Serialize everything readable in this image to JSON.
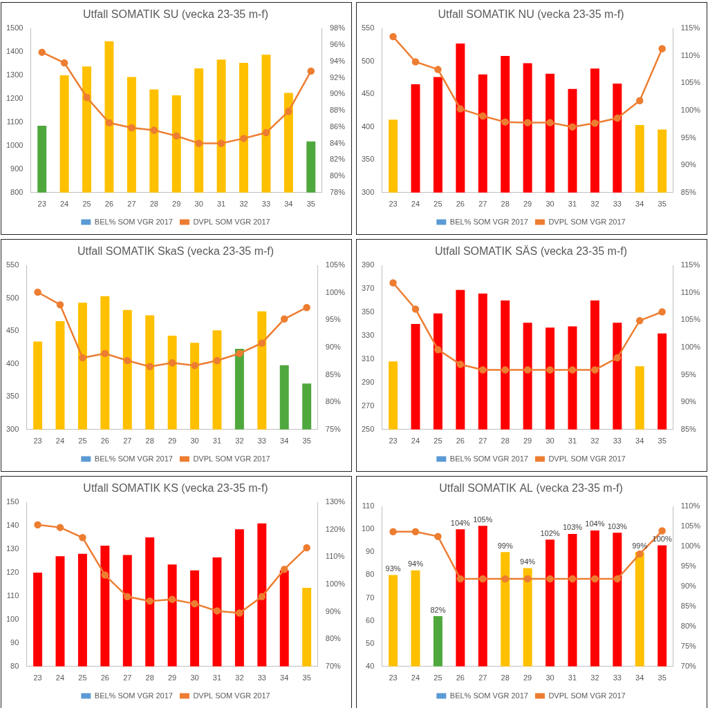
{
  "chart_data": [
    {
      "type": "bar",
      "title": "Utfall SOMATIK SU (vecka 23-35 m-f)",
      "categories": [
        "23",
        "24",
        "25",
        "26",
        "27",
        "28",
        "29",
        "30",
        "31",
        "32",
        "33",
        "34",
        "35"
      ],
      "series": [
        {
          "name": "BEL% SOM VGR 2017",
          "type": "bar",
          "color": "#5b9bd5",
          "colors": [
            "#4fa83d",
            "#ffc000",
            "#ffc000",
            "#ffc000",
            "#ffc000",
            "#ffc000",
            "#ffc000",
            "#ffc000",
            "#ffc000",
            "#ffc000",
            "#ffc000",
            "#ffc000",
            "#4fa83d"
          ],
          "values": [
            1085,
            1300,
            1338,
            1445,
            1293,
            1240,
            1215,
            1330,
            1367,
            1353,
            1388,
            1225,
            1018
          ]
        },
        {
          "name": "DVPL SOM VGR 2017",
          "type": "line",
          "color": "#ed7d31",
          "marker": "circle",
          "axis": "y2",
          "values": [
            95.1,
            93.8,
            89.6,
            86.5,
            85.9,
            85.6,
            84.9,
            84.0,
            84.0,
            84.6,
            85.3,
            87.9,
            92.8
          ]
        }
      ],
      "ylim": [
        800,
        1500
      ],
      "yticks": [
        800,
        900,
        1000,
        1100,
        1200,
        1300,
        1400,
        1500
      ],
      "y2lim": [
        78,
        98
      ],
      "y2ticks": [
        {
          "value": 78,
          "label": "78%"
        },
        {
          "value": 80,
          "label": "80%"
        },
        {
          "value": 82,
          "label": "82%"
        },
        {
          "value": 84,
          "label": "84%"
        },
        {
          "value": 86,
          "label": "86%"
        },
        {
          "value": 88,
          "label": "88%"
        },
        {
          "value": 90,
          "label": "90%"
        },
        {
          "value": 92,
          "label": "92%"
        },
        {
          "value": 94,
          "label": "94%"
        },
        {
          "value": 96,
          "label": "96%"
        },
        {
          "value": 98,
          "label": "98%"
        }
      ],
      "grid": false,
      "legend": "bottom"
    },
    {
      "type": "bar",
      "title": "Utfall SOMATIK NU (vecka 23-35 m-f)",
      "categories": [
        "23",
        "24",
        "25",
        "26",
        "27",
        "28",
        "29",
        "30",
        "31",
        "32",
        "33",
        "34",
        "35"
      ],
      "series": [
        {
          "name": "BEL% SOM VGR 2017",
          "type": "bar",
          "color": "#5b9bd5",
          "colors": [
            "#ffc000",
            "#ff0000",
            "#ff0000",
            "#ff0000",
            "#ff0000",
            "#ff0000",
            "#ff0000",
            "#ff0000",
            "#ff0000",
            "#ff0000",
            "#ff0000",
            "#ffc000",
            "#ffc000"
          ],
          "values": [
            411,
            465,
            476,
            527,
            480,
            508,
            497,
            481,
            458,
            489,
            466,
            403,
            396
          ]
        },
        {
          "name": "DVPL SOM VGR 2017",
          "type": "line",
          "color": "#ed7d31",
          "marker": "circle",
          "axis": "y2",
          "values": [
            113.5,
            108.9,
            107.5,
            100.3,
            99.0,
            97.9,
            97.8,
            97.8,
            97.0,
            97.7,
            98.6,
            101.8,
            111.3
          ]
        }
      ],
      "ylim": [
        300,
        550
      ],
      "yticks": [
        300,
        350,
        400,
        450,
        500,
        550
      ],
      "y2lim": [
        85,
        115
      ],
      "y2ticks": [
        {
          "value": 85,
          "label": "85%"
        },
        {
          "value": 90,
          "label": "90%"
        },
        {
          "value": 95,
          "label": "95%"
        },
        {
          "value": 100,
          "label": "100%"
        },
        {
          "value": 105,
          "label": "105%"
        },
        {
          "value": 110,
          "label": "110%"
        },
        {
          "value": 115,
          "label": "115%"
        }
      ],
      "grid": false,
      "legend": "bottom"
    },
    {
      "type": "bar",
      "title": "Utfall SOMATIK SkaS (vecka 23-35 m-f)",
      "categories": [
        "23",
        "24",
        "25",
        "26",
        "27",
        "28",
        "29",
        "30",
        "31",
        "32",
        "33",
        "34",
        "35"
      ],
      "series": [
        {
          "name": "BEL% SOM VGR 2017",
          "type": "bar",
          "color": "#5b9bd5",
          "colors": [
            "#ffc000",
            "#ffc000",
            "#ffc000",
            "#ffc000",
            "#ffc000",
            "#ffc000",
            "#ffc000",
            "#ffc000",
            "#ffc000",
            "#4fa83d",
            "#ffc000",
            "#4fa83d",
            "#4fa83d"
          ],
          "values": [
            434,
            465,
            493,
            503,
            482,
            474,
            443,
            432,
            451,
            423,
            480,
            398,
            370
          ]
        },
        {
          "name": "DVPL SOM VGR 2017",
          "type": "line",
          "color": "#ed7d31",
          "marker": "circle",
          "axis": "y2",
          "values": [
            100.1,
            97.8,
            88.1,
            88.9,
            87.6,
            86.5,
            87.2,
            86.7,
            87.6,
            88.9,
            90.8,
            95.2,
            97.3
          ]
        }
      ],
      "ylim": [
        300,
        550
      ],
      "yticks": [
        300,
        350,
        400,
        450,
        500,
        550
      ],
      "y2lim": [
        75,
        105
      ],
      "y2ticks": [
        {
          "value": 75,
          "label": "75%"
        },
        {
          "value": 80,
          "label": "80%"
        },
        {
          "value": 85,
          "label": "85%"
        },
        {
          "value": 90,
          "label": "90%"
        },
        {
          "value": 95,
          "label": "95%"
        },
        {
          "value": 100,
          "label": "100%"
        },
        {
          "value": 105,
          "label": "105%"
        }
      ],
      "grid": false,
      "legend": "bottom"
    },
    {
      "type": "bar",
      "title": "Utfall SOMATIK SÄS (vecka 23-35 m-f)",
      "categories": [
        "23",
        "24",
        "25",
        "26",
        "27",
        "28",
        "29",
        "30",
        "31",
        "32",
        "33",
        "34",
        "35"
      ],
      "series": [
        {
          "name": "BEL% SOM VGR 2017",
          "type": "bar",
          "color": "#5b9bd5",
          "colors": [
            "#ffc000",
            "#ff0000",
            "#ff0000",
            "#ff0000",
            "#ff0000",
            "#ff0000",
            "#ff0000",
            "#ff0000",
            "#ff0000",
            "#ff0000",
            "#ff0000",
            "#ffc000",
            "#ff0000"
          ],
          "values": [
            308,
            340,
            349,
            369,
            366,
            360,
            341,
            337,
            338,
            360,
            341,
            304,
            332
          ]
        },
        {
          "name": "DVPL SOM VGR 2017",
          "type": "line",
          "color": "#ed7d31",
          "marker": "circle",
          "axis": "y2",
          "values": [
            111.8,
            107.0,
            99.6,
            96.9,
            95.9,
            95.9,
            95.9,
            95.9,
            95.9,
            95.9,
            98.1,
            104.9,
            106.5
          ]
        }
      ],
      "ylim": [
        250,
        390
      ],
      "yticks": [
        250,
        270,
        290,
        310,
        330,
        350,
        370,
        390
      ],
      "y2lim": [
        85,
        115
      ],
      "y2ticks": [
        {
          "value": 85,
          "label": "85%"
        },
        {
          "value": 90,
          "label": "90%"
        },
        {
          "value": 95,
          "label": "95%"
        },
        {
          "value": 100,
          "label": "100%"
        },
        {
          "value": 105,
          "label": "105%"
        },
        {
          "value": 110,
          "label": "110%"
        },
        {
          "value": 115,
          "label": "115%"
        }
      ],
      "grid": false,
      "legend": "bottom"
    },
    {
      "type": "bar",
      "title": "Utfall SOMATIK KS (vecka 23-35 m-f)",
      "categories": [
        "23",
        "24",
        "25",
        "26",
        "27",
        "28",
        "29",
        "30",
        "31",
        "32",
        "33",
        "34",
        "35"
      ],
      "series": [
        {
          "name": "BEL% SOM VGR 2017",
          "type": "bar",
          "color": "#5b9bd5",
          "colors": [
            "#ff0000",
            "#ff0000",
            "#ff0000",
            "#ff0000",
            "#ff0000",
            "#ff0000",
            "#ff0000",
            "#ff0000",
            "#ff0000",
            "#ff0000",
            "#ff0000",
            "#ff0000",
            "#ffc000"
          ],
          "values": [
            120,
            127,
            128,
            131.5,
            127.5,
            135,
            123.5,
            121,
            126.5,
            138.5,
            141,
            121,
            113.5
          ]
        },
        {
          "name": "DVPL SOM VGR 2017",
          "type": "line",
          "color": "#ed7d31",
          "marker": "circle",
          "axis": "y2",
          "values": [
            121.8,
            120.8,
            117.1,
            103.4,
            95.5,
            93.9,
            94.5,
            92.9,
            90.3,
            89.5,
            95.5,
            105.5,
            113.4
          ]
        }
      ],
      "ylim": [
        80,
        150
      ],
      "yticks": [
        80,
        90,
        100,
        110,
        120,
        130,
        140,
        150
      ],
      "y2lim": [
        70,
        130
      ],
      "y2ticks": [
        {
          "value": 70,
          "label": "70%"
        },
        {
          "value": 80,
          "label": "80%"
        },
        {
          "value": 90,
          "label": "90%"
        },
        {
          "value": 100,
          "label": "100%"
        },
        {
          "value": 110,
          "label": "110%"
        },
        {
          "value": 120,
          "label": "120%"
        },
        {
          "value": 130,
          "label": "130%"
        }
      ],
      "grid": false,
      "legend": "bottom"
    },
    {
      "type": "bar",
      "title": "Utfall SOMATIK AL (vecka 23-35 m-f)",
      "categories": [
        "23",
        "24",
        "25",
        "26",
        "27",
        "28",
        "29",
        "30",
        "31",
        "32",
        "33",
        "34",
        "35"
      ],
      "series": [
        {
          "name": "BEL% SOM VGR 2017",
          "type": "bar",
          "color": "#5b9bd5",
          "colors": [
            "#ffc000",
            "#ffc000",
            "#4fa83d",
            "#ff0000",
            "#ff0000",
            "#ffc000",
            "#ffc000",
            "#ff0000",
            "#ff0000",
            "#ff0000",
            "#ff0000",
            "#ffc000",
            "#ff0000"
          ],
          "values": [
            80,
            82,
            62,
            100,
            101.5,
            90,
            83,
            95.5,
            98,
            99.5,
            98.5,
            90,
            93
          ]
        },
        {
          "name": "DVPL SOM VGR 2017",
          "type": "line",
          "color": "#ed7d31",
          "marker": "circle",
          "axis": "y2",
          "values": [
            103.7,
            103.7,
            102.5,
            91.9,
            91.9,
            91.9,
            91.9,
            91.9,
            91.9,
            91.9,
            91.9,
            98.1,
            103.9
          ]
        }
      ],
      "ylim": [
        40,
        110
      ],
      "yticks": [
        40,
        50,
        60,
        70,
        80,
        90,
        100,
        110
      ],
      "y2lim": [
        70,
        110
      ],
      "y2ticks": [
        {
          "value": 70,
          "label": "70%"
        },
        {
          "value": 75,
          "label": "75%"
        },
        {
          "value": 80,
          "label": "80%"
        },
        {
          "value": 85,
          "label": "85%"
        },
        {
          "value": 90,
          "label": "90%"
        },
        {
          "value": 95,
          "label": "95%"
        },
        {
          "value": 100,
          "label": "100%"
        },
        {
          "value": 105,
          "label": "105%"
        },
        {
          "value": 110,
          "label": "110%"
        }
      ],
      "annotations": [
        {
          "category": "23",
          "text": "93%"
        },
        {
          "category": "24",
          "text": "94%"
        },
        {
          "category": "25",
          "text": "82%"
        },
        {
          "category": "26",
          "text": "104%"
        },
        {
          "category": "27",
          "text": "105%"
        },
        {
          "category": "28",
          "text": "99%"
        },
        {
          "category": "29",
          "text": "94%"
        },
        {
          "category": "30",
          "text": "102%"
        },
        {
          "category": "31",
          "text": "103%"
        },
        {
          "category": "32",
          "text": "104%"
        },
        {
          "category": "33",
          "text": "103%"
        },
        {
          "category": "34",
          "text": "99%"
        },
        {
          "category": "35",
          "text": "100%"
        }
      ],
      "grid": false,
      "legend": "bottom"
    }
  ]
}
